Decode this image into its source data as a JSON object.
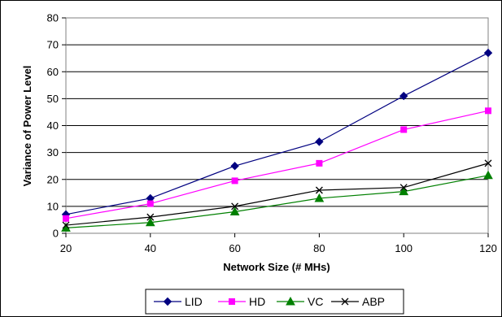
{
  "chart_data": {
    "type": "line",
    "title": "",
    "xlabel": "Network Size (# MHs)",
    "ylabel": "Variance of Power Level",
    "x": [
      20,
      40,
      60,
      80,
      100,
      120
    ],
    "xlim": [
      20,
      120
    ],
    "ylim": [
      0,
      80
    ],
    "yticks": [
      0,
      10,
      20,
      30,
      40,
      50,
      60,
      70,
      80
    ],
    "xticks": [
      20,
      40,
      60,
      80,
      100,
      120
    ],
    "grid": "horizontal",
    "legend_position": "bottom",
    "series": [
      {
        "name": "LID",
        "color": "#000080",
        "marker": "diamond",
        "values": [
          7,
          13,
          25,
          34,
          51,
          67
        ]
      },
      {
        "name": "HD",
        "color": "#FF00FF",
        "marker": "square",
        "values": [
          5.5,
          11,
          19.5,
          26,
          38.5,
          45.5
        ]
      },
      {
        "name": "VC",
        "color": "#008000",
        "marker": "triangle",
        "values": [
          2,
          4,
          8,
          13,
          15.5,
          21.5
        ]
      },
      {
        "name": "ABP",
        "color": "#000000",
        "marker": "x",
        "values": [
          3,
          6,
          10,
          16,
          17,
          26
        ]
      }
    ]
  }
}
